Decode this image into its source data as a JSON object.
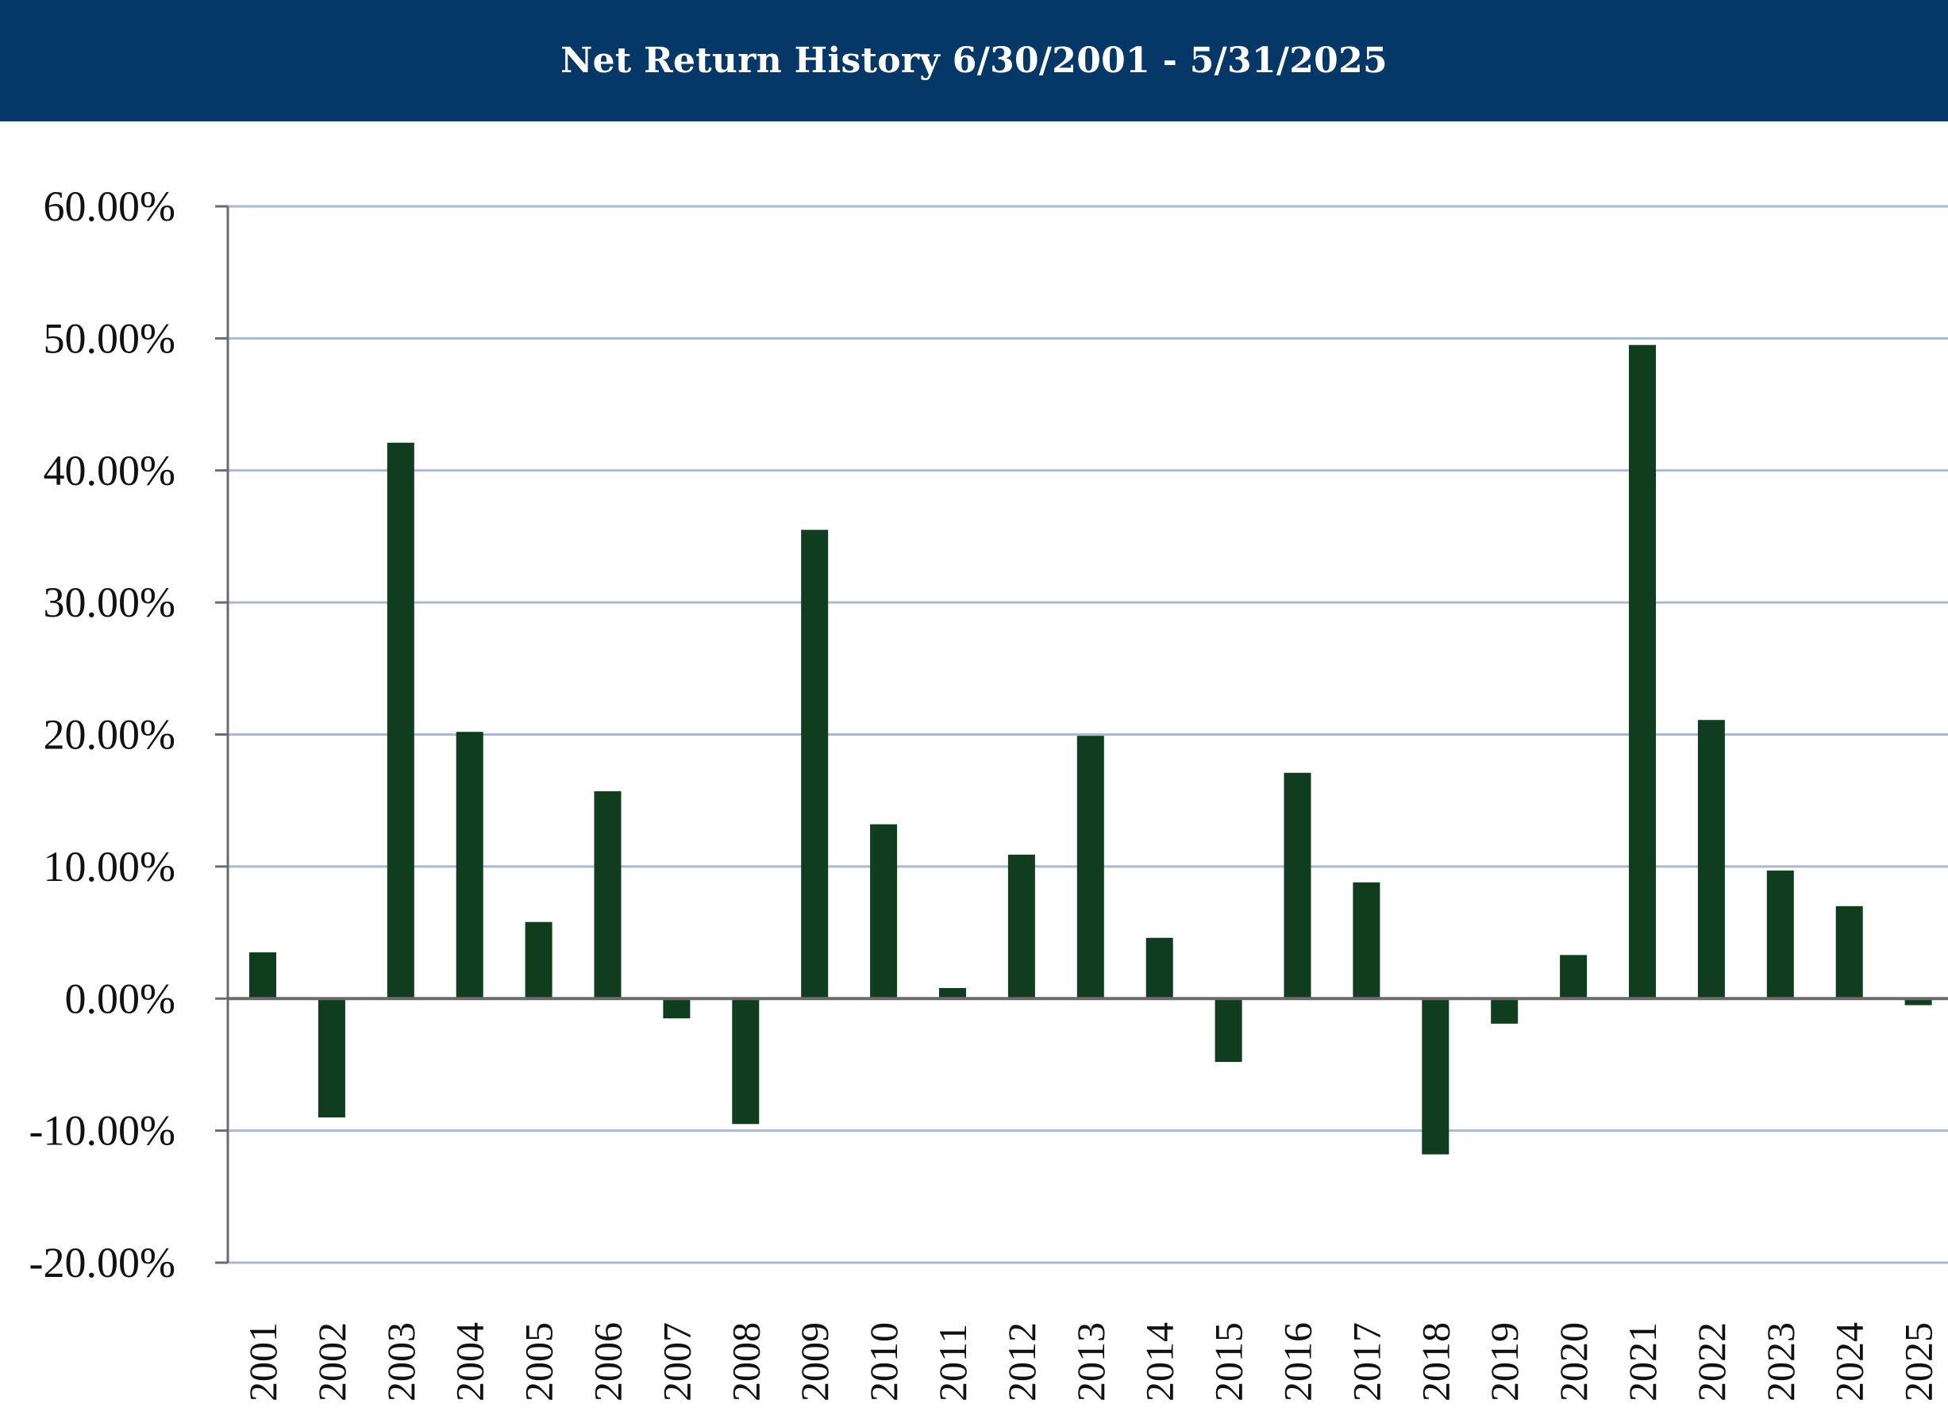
{
  "colors": {
    "banner": "#053866",
    "bar": "#0f3d1e",
    "grid": "#a9b8d4",
    "axis": "#6b6b6b"
  },
  "chart_data": {
    "type": "bar",
    "title": "Net Return History 6/30/2001 - 5/31/2025",
    "xlabel": "",
    "ylabel": "",
    "ylim": [
      -20,
      60
    ],
    "y_ticks": [
      60,
      50,
      40,
      30,
      20,
      10,
      0,
      -10,
      -20
    ],
    "y_tick_labels": [
      "60.00%",
      "50.00%",
      "40.00%",
      "30.00%",
      "20.00%",
      "10.00%",
      "0.00%",
      "-10.00%",
      "-20.00%"
    ],
    "grid": true,
    "legend": "none",
    "categories": [
      "2001",
      "2002",
      "2003",
      "2004",
      "2005",
      "2006",
      "2007",
      "2008",
      "2009",
      "2010",
      "2011",
      "2012",
      "2013",
      "2014",
      "2015",
      "2016",
      "2017",
      "2018",
      "2019",
      "2020",
      "2021",
      "2022",
      "2023",
      "2024",
      "2025"
    ],
    "values": [
      3.5,
      -9.0,
      42.1,
      20.2,
      5.8,
      15.7,
      -1.5,
      -9.5,
      35.5,
      13.2,
      0.8,
      10.9,
      19.9,
      4.6,
      -4.8,
      17.1,
      8.8,
      -11.8,
      -1.9,
      3.3,
      49.5,
      21.1,
      9.7,
      7.0,
      -0.5
    ]
  }
}
